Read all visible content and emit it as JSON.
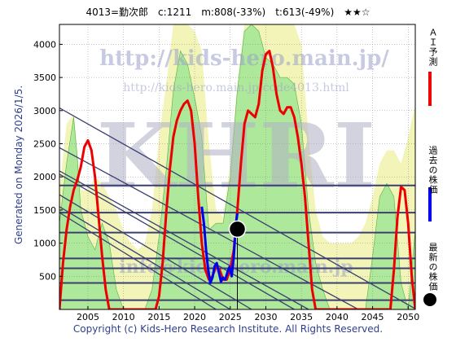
{
  "header": {
    "title": "4013=勤次郎　c:1211　m:808(-33%)　t:613(-49%)　★★☆"
  },
  "sidebar": {
    "generated": "Generated on Monday 2026/1/5."
  },
  "footer": {
    "copyright": "Copyright (c) Kids-Hero Research Institute. All Rights Reserved."
  },
  "watermark": {
    "url1": "http://kids-hero.main.jp/",
    "url2": "http://kids-hero.main.jp/code4013.html",
    "brand": "KHRI",
    "info": "info@kids-hero.main.jp"
  },
  "legend": {
    "ai": "ＡＩ予測",
    "past": "過去の株価",
    "latest": "最新の株価"
  },
  "colors": {
    "ai": "#ee0000",
    "past": "#0000ee",
    "latest": "#000000",
    "band_light": "#f3f5b8",
    "band_green": "#aee89a",
    "trend": "#3a3f6f"
  },
  "chart_data": {
    "type": "line",
    "xlim": [
      2001,
      2051
    ],
    "ylim": [
      0,
      4300
    ],
    "xticks": [
      2005,
      2010,
      2015,
      2020,
      2025,
      2030,
      2035,
      2040,
      2045,
      2050
    ],
    "yticks": [
      500,
      1000,
      1500,
      2000,
      2500,
      3000,
      3500,
      4000
    ],
    "grid": true,
    "series": [
      {
        "name": "ＡＩ予測",
        "x": [
          2001,
          2001.5,
          2002,
          2002.5,
          2003,
          2003.5,
          2004,
          2004.5,
          2005,
          2005.5,
          2006,
          2006.5,
          2007,
          2007.5,
          2008,
          2008.5,
          2009,
          2009.5,
          2010,
          2010.5,
          2011,
          2011.5,
          2012,
          2012.5,
          2013,
          2013.5,
          2014,
          2014.5,
          2015,
          2015.5,
          2016,
          2016.5,
          2017,
          2017.5,
          2018,
          2018.5,
          2019,
          2019.5,
          2020,
          2020.5,
          2021,
          2021.5,
          2022,
          2022.5,
          2023,
          2023.5,
          2024,
          2024.5,
          2025,
          2025.5,
          2026,
          2026.5,
          2027,
          2027.5,
          2028,
          2028.5,
          2029,
          2029.5,
          2030,
          2030.5,
          2031,
          2031.5,
          2032,
          2032.5,
          2033,
          2033.5,
          2034,
          2034.5,
          2035,
          2035.5,
          2036,
          2036.5,
          2037,
          2037.5,
          2038,
          2038.5,
          2039,
          2039.5,
          2040,
          2040.5,
          2041,
          2041.5,
          2042,
          2042.5,
          2043,
          2043.5,
          2044,
          2044.5,
          2045,
          2045.5,
          2046,
          2046.5,
          2047,
          2047.5,
          2048,
          2048.5,
          2049,
          2049.5,
          2050,
          2050.5,
          2051
        ],
        "y": [
          0,
          700,
          1200,
          1550,
          1800,
          1950,
          2150,
          2450,
          2550,
          2400,
          2000,
          1400,
          800,
          300,
          0,
          0,
          0,
          0,
          0,
          0,
          0,
          0,
          0,
          0,
          0,
          0,
          0,
          0,
          200,
          700,
          1450,
          2100,
          2600,
          2850,
          3000,
          3100,
          3150,
          3000,
          2500,
          1700,
          1000,
          600,
          450,
          500,
          650,
          600,
          450,
          450,
          600,
          900,
          1500,
          2200,
          2800,
          3000,
          2950,
          2900,
          3100,
          3600,
          3850,
          3900,
          3650,
          3250,
          3000,
          2950,
          3050,
          3050,
          2900,
          2600,
          2200,
          1700,
          1000,
          300,
          0,
          0,
          0,
          0,
          0,
          0,
          0,
          0,
          0,
          0,
          0,
          0,
          0,
          0,
          0,
          0,
          0,
          0,
          0,
          0,
          0,
          0,
          600,
          1400,
          1850,
          1800,
          1300,
          500,
          0
        ]
      },
      {
        "name": "過去の株価",
        "x": [
          2021,
          2021.3,
          2021.6,
          2021.9,
          2022.2,
          2022.5,
          2022.8,
          2023.1,
          2023.4,
          2023.7,
          2024.0,
          2024.3,
          2024.6,
          2024.9,
          2025.2,
          2025.5,
          2025.8,
          2026.0
        ],
        "y": [
          1550,
          1300,
          900,
          600,
          400,
          480,
          650,
          700,
          560,
          420,
          480,
          450,
          560,
          640,
          500,
          800,
          1300,
          1450
        ]
      }
    ],
    "latest_point": {
      "x": 2026.0,
      "y": 1211
    },
    "horizontal_levels": [
      1870,
      1460,
      1160,
      770,
      620,
      400,
      140
    ],
    "trend_lines": [
      {
        "x1": 2001,
        "y1": 3040,
        "x2": 2051,
        "y2": 10
      },
      {
        "x1": 2001,
        "y1": 2440,
        "x2": 2043,
        "y2": 0
      },
      {
        "x1": 2001,
        "y1": 2090,
        "x2": 2036,
        "y2": 0
      },
      {
        "x1": 2001,
        "y1": 2040,
        "x2": 2034,
        "y2": 0
      },
      {
        "x1": 2001,
        "y1": 1730,
        "x2": 2028,
        "y2": 0
      },
      {
        "x1": 2001,
        "y1": 1550,
        "x2": 2025,
        "y2": 0
      },
      {
        "x1": 2001,
        "y1": 1460,
        "x2": 2023,
        "y2": 0
      }
    ],
    "bands": [
      {
        "x": [
          2001,
          2002,
          2003,
          2003.5,
          2004,
          2005,
          2006,
          2007,
          2008,
          2009,
          2010,
          2011,
          2012,
          2013,
          2014,
          2015,
          2016,
          2017,
          2018,
          2019,
          2020,
          2021,
          2022,
          2023,
          2024,
          2025,
          2026,
          2027,
          2028,
          2029,
          2030,
          2031,
          2032,
          2033,
          2034,
          2035,
          2036,
          2037,
          2038,
          2039,
          2040,
          2041,
          2042,
          2043,
          2044,
          2045,
          2046,
          2047,
          2048,
          2049,
          2050,
          2051
        ],
        "y": [
          1800,
          2800,
          2950,
          2400,
          1800,
          1800,
          2000,
          1900,
          1700,
          1500,
          1200,
          1000,
          900,
          1000,
          1500,
          2600,
          3400,
          4300,
          4300,
          4300,
          4200,
          3900,
          2500,
          1500,
          1400,
          2200,
          3400,
          4300,
          4300,
          4300,
          4300,
          4300,
          4300,
          4300,
          4300,
          4000,
          2600,
          1500,
          1100,
          1000,
          1000,
          1000,
          1000,
          1100,
          1300,
          1700,
          2200,
          2400,
          2400,
          2200,
          2600,
          3100
        ],
        "kind": "light"
      },
      {
        "x": [
          2001,
          2002,
          2003,
          2003.5,
          2004,
          2005,
          2006,
          2007,
          2008,
          2009,
          2010,
          2011,
          2012,
          2013,
          2014,
          2015,
          2016,
          2017,
          2018,
          2019,
          2020,
          2021,
          2022,
          2023,
          2024,
          2025,
          2026,
          2027,
          2028,
          2029,
          2030,
          2031,
          2032,
          2033,
          2034,
          2035,
          2036,
          2037,
          2038,
          2039,
          2040,
          2041,
          2042,
          2043,
          2044,
          2045,
          2046,
          2047,
          2048,
          2049,
          2050,
          2051
        ],
        "y": [
          1300,
          2200,
          2900,
          2300,
          1500,
          1100,
          900,
          1300,
          1000,
          300,
          0,
          0,
          0,
          0,
          300,
          1100,
          2100,
          3300,
          3900,
          3700,
          3200,
          2600,
          1200,
          1300,
          1300,
          2000,
          3300,
          4200,
          4300,
          4200,
          3800,
          3700,
          3500,
          3500,
          3400,
          2800,
          1500,
          700,
          300,
          0,
          0,
          0,
          0,
          0,
          0,
          800,
          1700,
          1900,
          1700,
          400,
          0,
          1200
        ],
        "kind": "green"
      }
    ]
  }
}
